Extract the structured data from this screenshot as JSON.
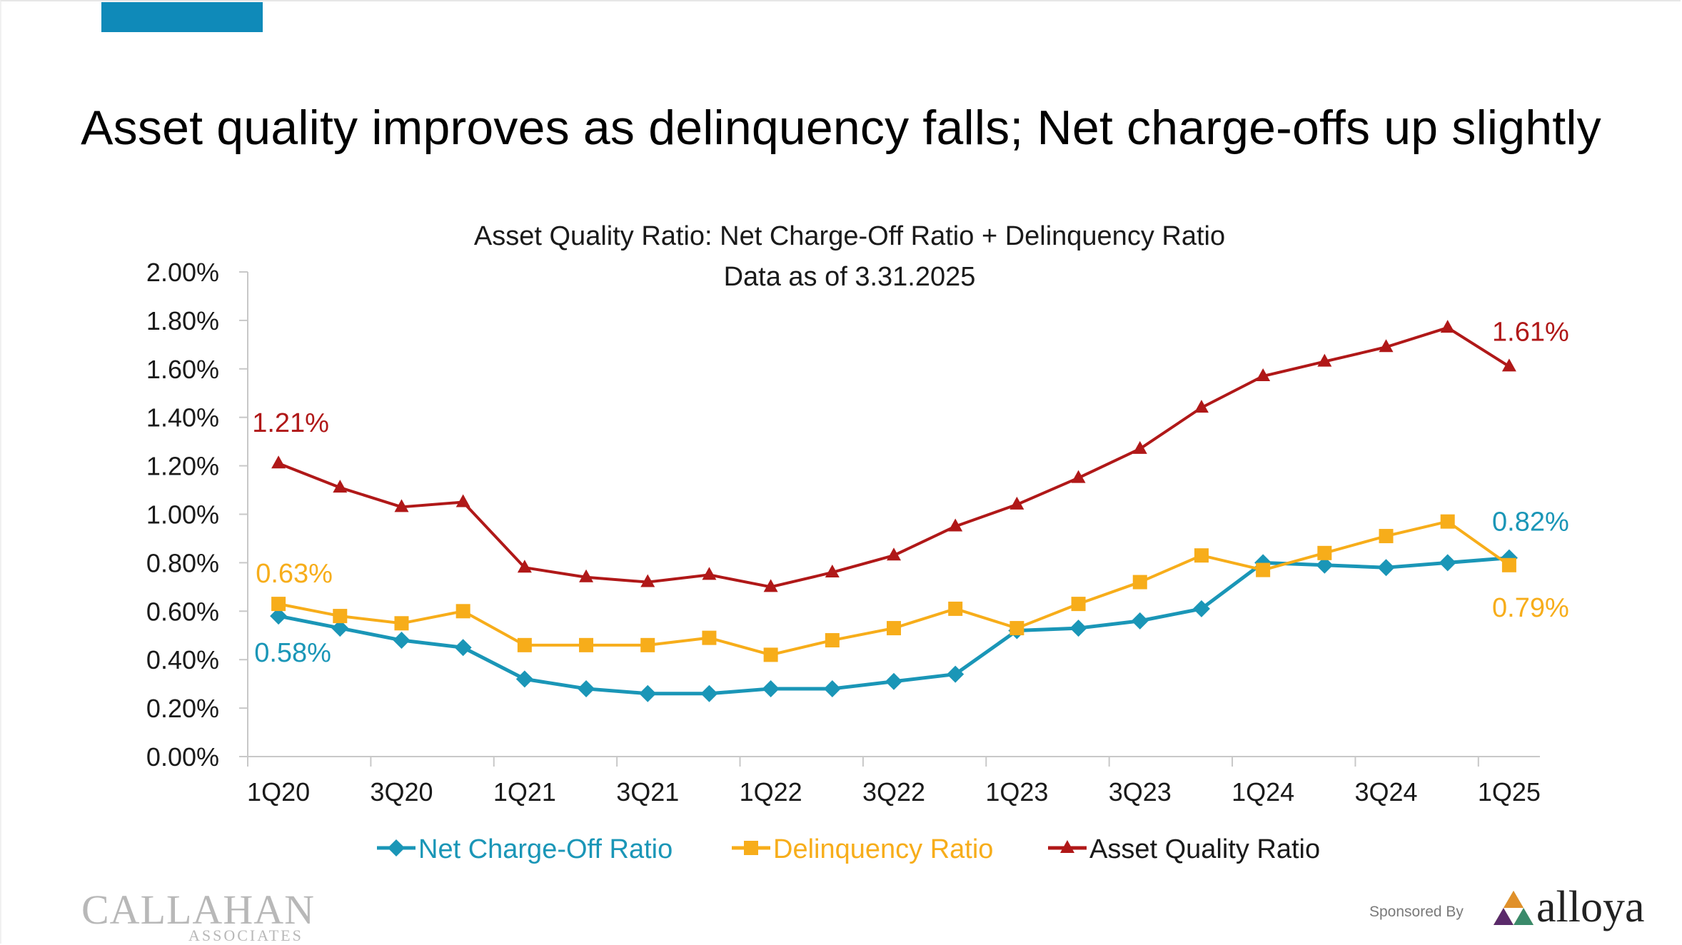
{
  "slide": {
    "headline": "Asset quality improves as delinquency falls; Net charge-offs up slightly",
    "accent_color": "#0f8ab9"
  },
  "chart_data": {
    "type": "line",
    "title": "Asset Quality Ratio: Net Charge-Off Ratio + Delinquency Ratio",
    "subtitle": "Data as of 3.31.2025",
    "xlabel": "",
    "ylabel": "",
    "x": [
      "1Q20",
      "2Q20",
      "3Q20",
      "4Q20",
      "1Q21",
      "2Q21",
      "3Q21",
      "4Q21",
      "1Q22",
      "2Q22",
      "3Q22",
      "4Q22",
      "1Q23",
      "2Q23",
      "3Q23",
      "4Q23",
      "1Q24",
      "2Q24",
      "3Q24",
      "4Q24",
      "1Q25"
    ],
    "x_tick_labels": [
      "1Q20",
      "3Q20",
      "1Q21",
      "3Q21",
      "1Q22",
      "3Q22",
      "1Q23",
      "3Q23",
      "1Q24",
      "3Q24",
      "1Q25"
    ],
    "ylim": [
      0,
      2.0
    ],
    "y_ticks": [
      "0.00%",
      "0.20%",
      "0.40%",
      "0.60%",
      "0.80%",
      "1.00%",
      "1.20%",
      "1.40%",
      "1.60%",
      "1.80%",
      "2.00%"
    ],
    "grid": false,
    "legend_position": "bottom",
    "series": [
      {
        "name": "Net Charge-Off Ratio",
        "color": "#1a96b7",
        "marker": "diamond",
        "values": [
          0.58,
          0.53,
          0.48,
          0.45,
          0.32,
          0.28,
          0.26,
          0.26,
          0.28,
          0.28,
          0.31,
          0.34,
          0.52,
          0.53,
          0.56,
          0.61,
          0.8,
          0.79,
          0.78,
          0.8,
          0.82
        ]
      },
      {
        "name": "Delinquency Ratio",
        "color": "#f7ad1a",
        "marker": "square",
        "values": [
          0.63,
          0.58,
          0.55,
          0.6,
          0.46,
          0.46,
          0.46,
          0.49,
          0.42,
          0.48,
          0.53,
          0.61,
          0.53,
          0.63,
          0.72,
          0.83,
          0.77,
          0.84,
          0.91,
          0.97,
          0.79
        ]
      },
      {
        "name": "Asset Quality Ratio",
        "color": "#b01818",
        "marker": "triangle",
        "values": [
          1.21,
          1.11,
          1.03,
          1.05,
          0.78,
          0.74,
          0.72,
          0.75,
          0.7,
          0.76,
          0.83,
          0.95,
          1.04,
          1.15,
          1.27,
          1.44,
          1.57,
          1.63,
          1.69,
          1.77,
          1.61
        ]
      }
    ],
    "annotations": [
      {
        "text": "1.21%",
        "series": "Asset Quality Ratio",
        "x": "1Q20",
        "y": 1.21
      },
      {
        "text": "0.63%",
        "series": "Delinquency Ratio",
        "x": "1Q20",
        "y": 0.63
      },
      {
        "text": "0.58%",
        "series": "Net Charge-Off Ratio",
        "x": "1Q20",
        "y": 0.58
      },
      {
        "text": "1.61%",
        "series": "Asset Quality Ratio",
        "x": "1Q25",
        "y": 1.61
      },
      {
        "text": "0.82%",
        "series": "Net Charge-Off Ratio",
        "x": "1Q25",
        "y": 0.82
      },
      {
        "text": "0.79%",
        "series": "Delinquency Ratio",
        "x": "1Q25",
        "y": 0.79
      }
    ]
  },
  "footer": {
    "callahan_main": "CALLAHAN",
    "callahan_sub": "ASSOCIATES",
    "sponsored_by": "Sponsored By",
    "alloya": "alloya"
  }
}
